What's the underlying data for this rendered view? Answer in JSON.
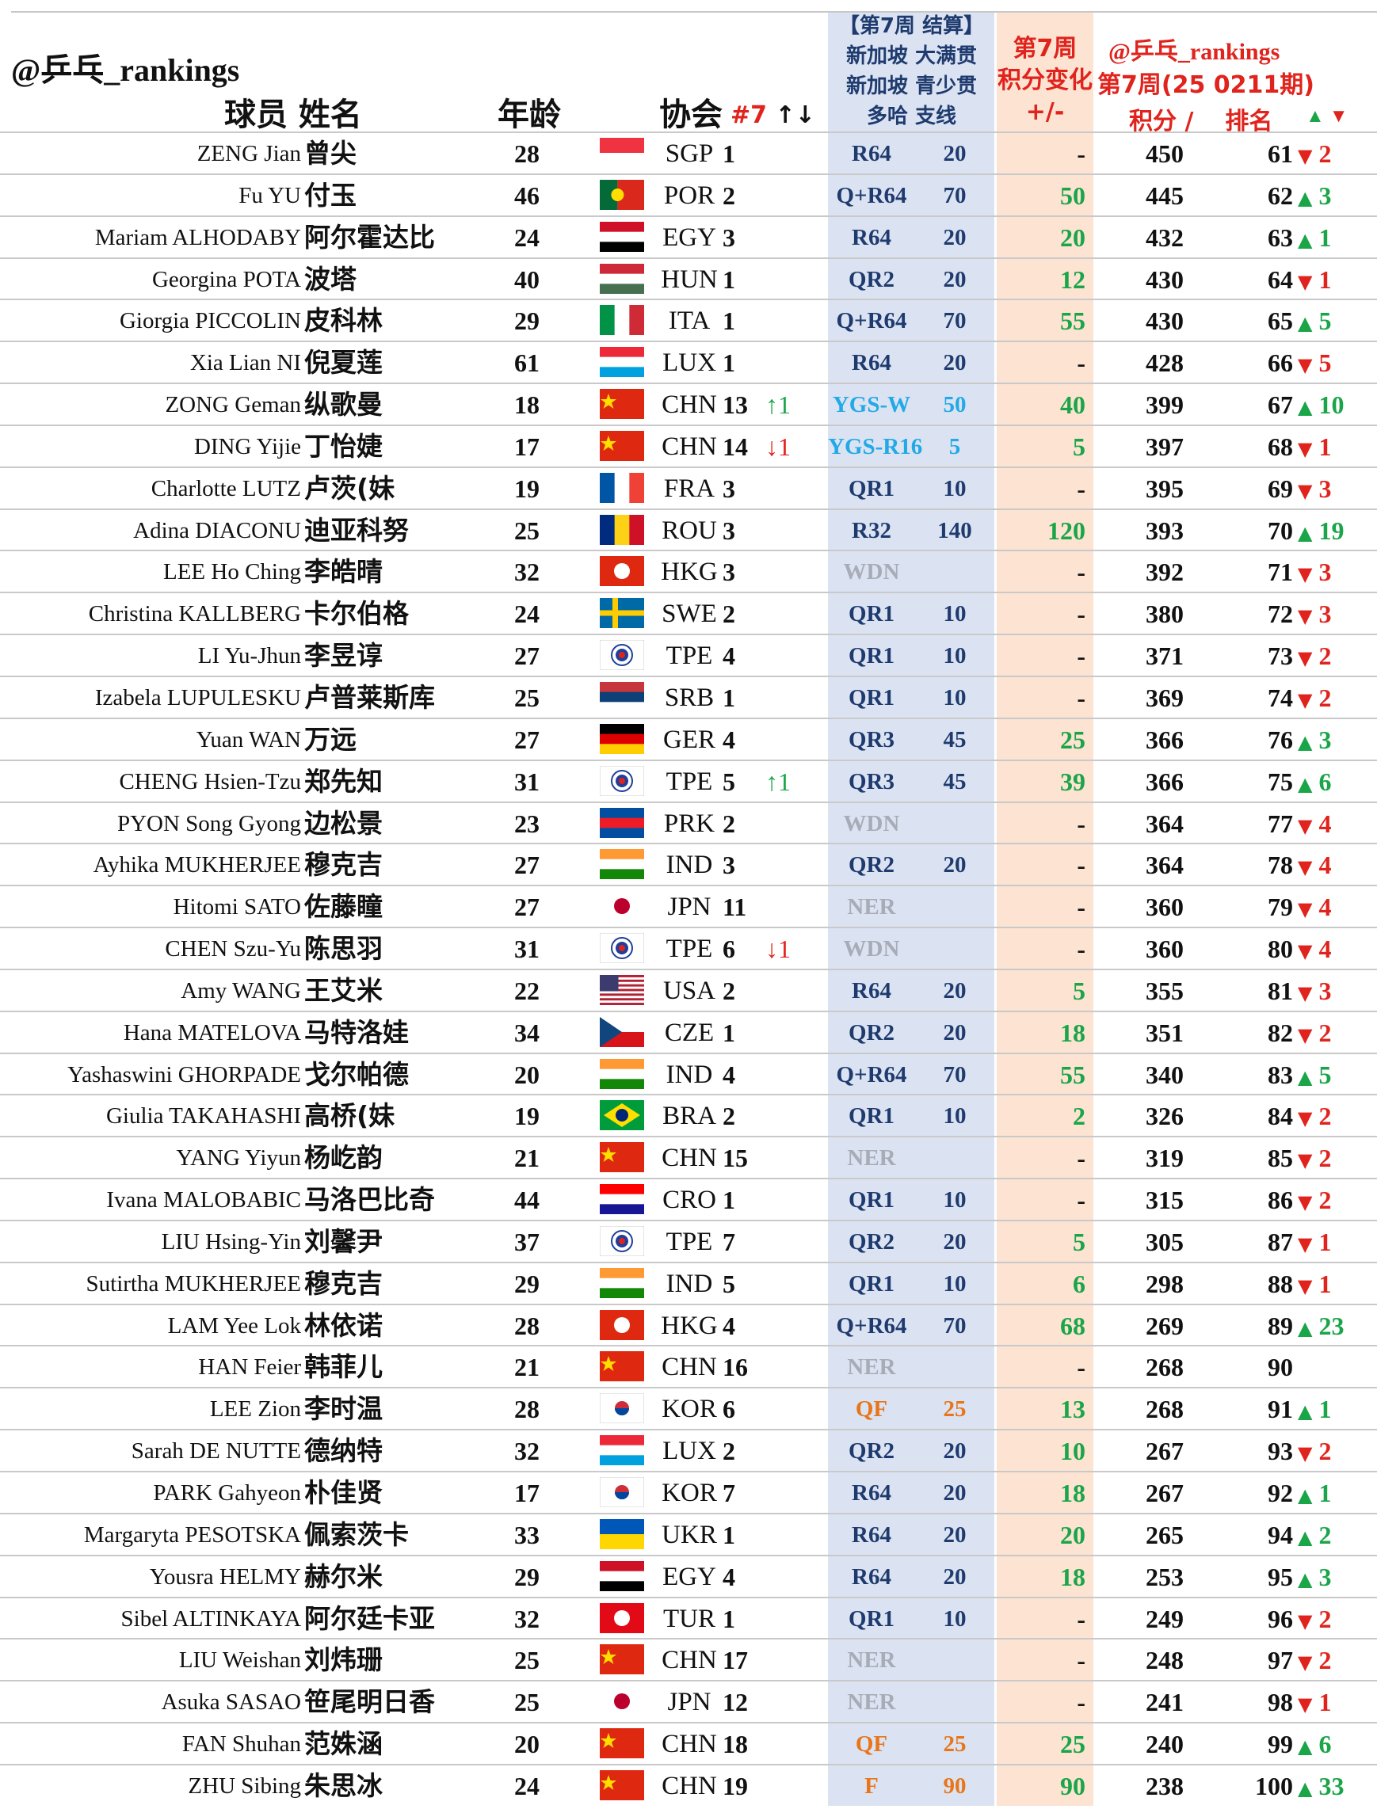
{
  "brand": "@乒乓_rankings",
  "headers": {
    "name": "球员 姓名",
    "age": "年龄",
    "assoc": "协会",
    "wk7": "#7",
    "wk7_arrows": "↑↓",
    "tournament": [
      "【第7周 结算】",
      "新加坡 大满贯",
      "新加坡 青少贯",
      "多哈 支线"
    ],
    "change": [
      "第7周",
      "积分变化",
      "+/-"
    ],
    "rank_brand": "@乒乓_rankings",
    "rank_period": "第7周(25 0211期)",
    "points": "积分 /",
    "rank": "排名",
    "move": [
      "▲",
      "▼"
    ]
  },
  "colors": {
    "up": "#1aa548",
    "down": "#e0231c",
    "result_default": "#1f3b6e",
    "result_youth": "#22a9e6",
    "result_none": "#a7acb6",
    "result_deep": "#e8751a"
  },
  "rows": [
    {
      "en": "ZENG Jian",
      "cn": "曾尖",
      "age": "28",
      "country": "SGP",
      "num": "1",
      "chg": "",
      "res": "R64",
      "res_style": "default",
      "pts": "20",
      "delta": "-",
      "total": "450",
      "rank": "61",
      "mv": "2",
      "mv_dir": "down"
    },
    {
      "en": "Fu YU",
      "cn": "付玉",
      "age": "46",
      "country": "POR",
      "num": "2",
      "chg": "",
      "res": "Q+R64",
      "res_style": "default",
      "pts": "70",
      "delta": "50",
      "total": "445",
      "rank": "62",
      "mv": "3",
      "mv_dir": "up"
    },
    {
      "en": "Mariam ALHODABY",
      "cn": "阿尔霍达比",
      "age": "24",
      "country": "EGY",
      "num": "3",
      "chg": "",
      "res": "R64",
      "res_style": "default",
      "pts": "20",
      "delta": "20",
      "total": "432",
      "rank": "63",
      "mv": "1",
      "mv_dir": "up"
    },
    {
      "en": "Georgina POTA",
      "cn": "波塔",
      "age": "40",
      "country": "HUN",
      "num": "1",
      "chg": "",
      "res": "QR2",
      "res_style": "default",
      "pts": "20",
      "delta": "12",
      "total": "430",
      "rank": "64",
      "mv": "1",
      "mv_dir": "down"
    },
    {
      "en": "Giorgia PICCOLIN",
      "cn": "皮科林",
      "age": "29",
      "country": "ITA",
      "num": "1",
      "chg": "",
      "res": "Q+R64",
      "res_style": "default",
      "pts": "70",
      "delta": "55",
      "total": "430",
      "rank": "65",
      "mv": "5",
      "mv_dir": "up"
    },
    {
      "en": "Xia Lian NI",
      "cn": "倪夏莲",
      "age": "61",
      "country": "LUX",
      "num": "1",
      "chg": "",
      "res": "R64",
      "res_style": "default",
      "pts": "20",
      "delta": "-",
      "total": "428",
      "rank": "66",
      "mv": "5",
      "mv_dir": "down"
    },
    {
      "en": "ZONG Geman",
      "cn": "纵歌曼",
      "age": "18",
      "country": "CHN",
      "num": "13",
      "chg": "↑1",
      "chg_dir": "up",
      "res": "YGS-W",
      "res_style": "youth",
      "pts": "50",
      "delta": "40",
      "total": "399",
      "rank": "67",
      "mv": "10",
      "mv_dir": "up"
    },
    {
      "en": "DING Yijie",
      "cn": "丁怡婕",
      "age": "17",
      "country": "CHN",
      "num": "14",
      "chg": "↓1",
      "chg_dir": "down",
      "res": "YGS-R16",
      "res_style": "youth",
      "pts": "5",
      "delta": "5",
      "total": "397",
      "rank": "68",
      "mv": "1",
      "mv_dir": "down"
    },
    {
      "en": "Charlotte LUTZ",
      "cn": "卢茨(妹",
      "age": "19",
      "country": "FRA",
      "num": "3",
      "chg": "",
      "res": "QR1",
      "res_style": "default",
      "pts": "10",
      "delta": "-",
      "total": "395",
      "rank": "69",
      "mv": "3",
      "mv_dir": "down"
    },
    {
      "en": "Adina DIACONU",
      "cn": "迪亚科努",
      "age": "25",
      "country": "ROU",
      "num": "3",
      "chg": "",
      "res": "R32",
      "res_style": "default",
      "pts": "140",
      "delta": "120",
      "total": "393",
      "rank": "70",
      "mv": "19",
      "mv_dir": "up"
    },
    {
      "en": "LEE Ho Ching",
      "cn": "李皓晴",
      "age": "32",
      "country": "HKG",
      "num": "3",
      "chg": "",
      "res": "WDN",
      "res_style": "none",
      "pts": "",
      "delta": "-",
      "total": "392",
      "rank": "71",
      "mv": "3",
      "mv_dir": "down"
    },
    {
      "en": "Christina KALLBERG",
      "cn": "卡尔伯格",
      "age": "24",
      "country": "SWE",
      "num": "2",
      "chg": "",
      "res": "QR1",
      "res_style": "default",
      "pts": "10",
      "delta": "-",
      "total": "380",
      "rank": "72",
      "mv": "3",
      "mv_dir": "down"
    },
    {
      "en": "LI Yu-Jhun",
      "cn": "李昱谆",
      "age": "27",
      "country": "TPE",
      "num": "4",
      "chg": "",
      "res": "QR1",
      "res_style": "default",
      "pts": "10",
      "delta": "-",
      "total": "371",
      "rank": "73",
      "mv": "2",
      "mv_dir": "down"
    },
    {
      "en": "Izabela LUPULESKU",
      "cn": "卢普莱斯库",
      "age": "25",
      "country": "SRB",
      "num": "1",
      "chg": "",
      "res": "QR1",
      "res_style": "default",
      "pts": "10",
      "delta": "-",
      "total": "369",
      "rank": "74",
      "mv": "2",
      "mv_dir": "down"
    },
    {
      "en": "Yuan WAN",
      "cn": "万远",
      "age": "27",
      "country": "GER",
      "num": "4",
      "chg": "",
      "res": "QR3",
      "res_style": "default",
      "pts": "45",
      "delta": "25",
      "total": "366",
      "rank": "76",
      "mv": "3",
      "mv_dir": "up"
    },
    {
      "en": "CHENG Hsien-Tzu",
      "cn": "郑先知",
      "age": "31",
      "country": "TPE",
      "num": "5",
      "chg": "↑1",
      "chg_dir": "up",
      "res": "QR3",
      "res_style": "default",
      "pts": "45",
      "delta": "39",
      "total": "366",
      "rank": "75",
      "mv": "6",
      "mv_dir": "up"
    },
    {
      "en": "PYON Song Gyong",
      "cn": "边松景",
      "age": "23",
      "country": "PRK",
      "num": "2",
      "chg": "",
      "res": "WDN",
      "res_style": "none",
      "pts": "",
      "delta": "-",
      "total": "364",
      "rank": "77",
      "mv": "4",
      "mv_dir": "down"
    },
    {
      "en": "Ayhika MUKHERJEE",
      "cn": "穆克吉",
      "age": "27",
      "country": "IND",
      "num": "3",
      "chg": "",
      "res": "QR2",
      "res_style": "default",
      "pts": "20",
      "delta": "-",
      "total": "364",
      "rank": "78",
      "mv": "4",
      "mv_dir": "down"
    },
    {
      "en": "Hitomi SATO",
      "cn": "佐藤瞳",
      "age": "27",
      "country": "JPN",
      "num": "11",
      "chg": "",
      "res": "NER",
      "res_style": "none",
      "pts": "",
      "delta": "-",
      "total": "360",
      "rank": "79",
      "mv": "4",
      "mv_dir": "down"
    },
    {
      "en": "CHEN Szu-Yu",
      "cn": "陈思羽",
      "age": "31",
      "country": "TPE",
      "num": "6",
      "chg": "↓1",
      "chg_dir": "down",
      "res": "WDN",
      "res_style": "none",
      "pts": "",
      "delta": "-",
      "total": "360",
      "rank": "80",
      "mv": "4",
      "mv_dir": "down"
    },
    {
      "en": "Amy WANG",
      "cn": "王艾米",
      "age": "22",
      "country": "USA",
      "num": "2",
      "chg": "",
      "res": "R64",
      "res_style": "default",
      "pts": "20",
      "delta": "5",
      "total": "355",
      "rank": "81",
      "mv": "3",
      "mv_dir": "down"
    },
    {
      "en": "Hana MATELOVA",
      "cn": "马特洛娃",
      "age": "34",
      "country": "CZE",
      "num": "1",
      "chg": "",
      "res": "QR2",
      "res_style": "default",
      "pts": "20",
      "delta": "18",
      "total": "351",
      "rank": "82",
      "mv": "2",
      "mv_dir": "down"
    },
    {
      "en": "Yashaswini GHORPADE",
      "cn": "戈尔帕德",
      "age": "20",
      "country": "IND",
      "num": "4",
      "chg": "",
      "res": "Q+R64",
      "res_style": "default",
      "pts": "70",
      "delta": "55",
      "total": "340",
      "rank": "83",
      "mv": "5",
      "mv_dir": "up"
    },
    {
      "en": "Giulia TAKAHASHI",
      "cn": "高桥(妹",
      "age": "19",
      "country": "BRA",
      "num": "2",
      "chg": "",
      "res": "QR1",
      "res_style": "default",
      "pts": "10",
      "delta": "2",
      "total": "326",
      "rank": "84",
      "mv": "2",
      "mv_dir": "down"
    },
    {
      "en": "YANG Yiyun",
      "cn": "杨屹韵",
      "age": "21",
      "country": "CHN",
      "num": "15",
      "chg": "",
      "res": "NER",
      "res_style": "none",
      "pts": "",
      "delta": "-",
      "total": "319",
      "rank": "85",
      "mv": "2",
      "mv_dir": "down"
    },
    {
      "en": "Ivana MALOBABIC",
      "cn": "马洛巴比奇",
      "age": "44",
      "country": "CRO",
      "num": "1",
      "chg": "",
      "res": "QR1",
      "res_style": "default",
      "pts": "10",
      "delta": "-",
      "total": "315",
      "rank": "86",
      "mv": "2",
      "mv_dir": "down"
    },
    {
      "en": "LIU Hsing-Yin",
      "cn": "刘馨尹",
      "age": "37",
      "country": "TPE",
      "num": "7",
      "chg": "",
      "res": "QR2",
      "res_style": "default",
      "pts": "20",
      "delta": "5",
      "total": "305",
      "rank": "87",
      "mv": "1",
      "mv_dir": "down"
    },
    {
      "en": "Sutirtha MUKHERJEE",
      "cn": "穆克吉",
      "age": "29",
      "country": "IND",
      "num": "5",
      "chg": "",
      "res": "QR1",
      "res_style": "default",
      "pts": "10",
      "delta": "6",
      "total": "298",
      "rank": "88",
      "mv": "1",
      "mv_dir": "down"
    },
    {
      "en": "LAM Yee Lok",
      "cn": "林依诺",
      "age": "28",
      "country": "HKG",
      "num": "4",
      "chg": "",
      "res": "Q+R64",
      "res_style": "default",
      "pts": "70",
      "delta": "68",
      "total": "269",
      "rank": "89",
      "mv": "23",
      "mv_dir": "up"
    },
    {
      "en": "HAN Feier",
      "cn": "韩菲儿",
      "age": "21",
      "country": "CHN",
      "num": "16",
      "chg": "",
      "res": "NER",
      "res_style": "none",
      "pts": "",
      "delta": "-",
      "total": "268",
      "rank": "90",
      "mv": "",
      "mv_dir": ""
    },
    {
      "en": "LEE Zion",
      "cn": "李时温",
      "age": "28",
      "country": "KOR",
      "num": "6",
      "chg": "",
      "res": "QF",
      "res_style": "deep",
      "pts": "25",
      "delta": "13",
      "total": "268",
      "rank": "91",
      "mv": "1",
      "mv_dir": "up"
    },
    {
      "en": "Sarah DE NUTTE",
      "cn": "德纳特",
      "age": "32",
      "country": "LUX",
      "num": "2",
      "chg": "",
      "res": "QR2",
      "res_style": "default",
      "pts": "20",
      "delta": "10",
      "total": "267",
      "rank": "93",
      "mv": "2",
      "mv_dir": "down"
    },
    {
      "en": "PARK Gahyeon",
      "cn": "朴佳贤",
      "age": "17",
      "country": "KOR",
      "num": "7",
      "chg": "",
      "res": "R64",
      "res_style": "default",
      "pts": "20",
      "delta": "18",
      "total": "267",
      "rank": "92",
      "mv": "1",
      "mv_dir": "up"
    },
    {
      "en": "Margaryta PESOTSKA",
      "cn": "佩索茨卡",
      "age": "33",
      "country": "UKR",
      "num": "1",
      "chg": "",
      "res": "R64",
      "res_style": "default",
      "pts": "20",
      "delta": "20",
      "total": "265",
      "rank": "94",
      "mv": "2",
      "mv_dir": "up"
    },
    {
      "en": "Yousra HELMY",
      "cn": "赫尔米",
      "age": "29",
      "country": "EGY",
      "num": "4",
      "chg": "",
      "res": "R64",
      "res_style": "default",
      "pts": "20",
      "delta": "18",
      "total": "253",
      "rank": "95",
      "mv": "3",
      "mv_dir": "up"
    },
    {
      "en": "Sibel ALTINKAYA",
      "cn": "阿尔廷卡亚",
      "age": "32",
      "country": "TUR",
      "num": "1",
      "chg": "",
      "res": "QR1",
      "res_style": "default",
      "pts": "10",
      "delta": "-",
      "total": "249",
      "rank": "96",
      "mv": "2",
      "mv_dir": "down"
    },
    {
      "en": "LIU Weishan",
      "cn": "刘炜珊",
      "age": "25",
      "country": "CHN",
      "num": "17",
      "chg": "",
      "res": "NER",
      "res_style": "none",
      "pts": "",
      "delta": "-",
      "total": "248",
      "rank": "97",
      "mv": "2",
      "mv_dir": "down"
    },
    {
      "en": "Asuka SASAO",
      "cn": "笹尾明日香",
      "age": "25",
      "country": "JPN",
      "num": "12",
      "chg": "",
      "res": "NER",
      "res_style": "none",
      "pts": "",
      "delta": "-",
      "total": "241",
      "rank": "98",
      "mv": "1",
      "mv_dir": "down"
    },
    {
      "en": "FAN Shuhan",
      "cn": "范姝涵",
      "age": "20",
      "country": "CHN",
      "num": "18",
      "chg": "",
      "res": "QF",
      "res_style": "deep",
      "pts": "25",
      "delta": "25",
      "total": "240",
      "rank": "99",
      "mv": "6",
      "mv_dir": "up"
    },
    {
      "en": "ZHU Sibing",
      "cn": "朱思冰",
      "age": "24",
      "country": "CHN",
      "num": "19",
      "chg": "",
      "res": "F",
      "res_style": "deep",
      "pts": "90",
      "delta": "90",
      "total": "238",
      "rank": "100",
      "mv": "33",
      "mv_dir": "up"
    }
  ]
}
